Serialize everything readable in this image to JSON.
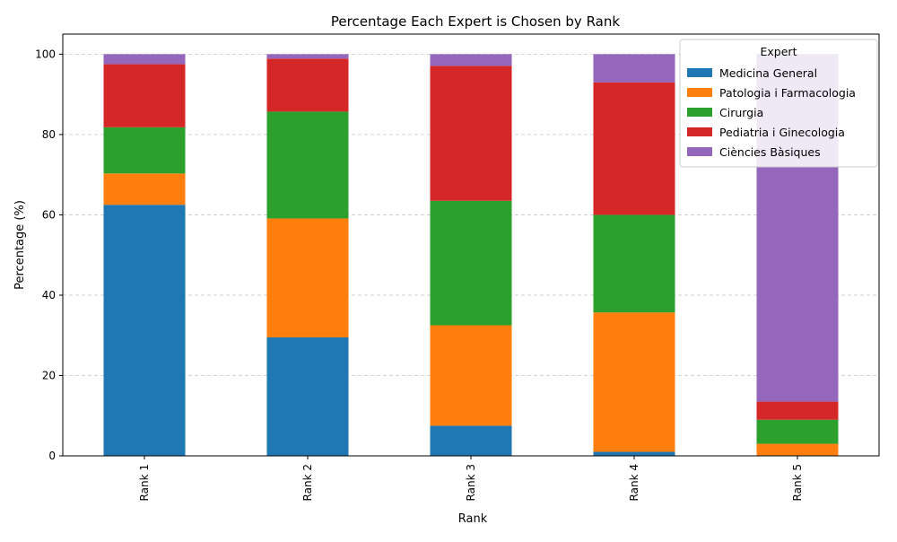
{
  "chart_data": {
    "type": "bar",
    "stacked": true,
    "title": "Percentage Each Expert is Chosen by Rank",
    "xlabel": "Rank",
    "ylabel": "Percentage (%)",
    "ylim": [
      0,
      105
    ],
    "yticks": [
      0,
      20,
      40,
      60,
      80,
      100
    ],
    "grid": "y-dashed",
    "legend_title": "Expert",
    "legend_position": "top-right",
    "categories": [
      "Rank 1",
      "Rank 2",
      "Rank 3",
      "Rank 4",
      "Rank 5"
    ],
    "series": [
      {
        "name": "Medicina General",
        "color": "#1f77b4",
        "values": [
          62.5,
          29.5,
          7.5,
          1.0,
          0.0
        ]
      },
      {
        "name": "Patologia i Farmacologia",
        "color": "#ff7f0e",
        "values": [
          7.8,
          29.6,
          25.0,
          34.7,
          3.0
        ]
      },
      {
        "name": "Cirurgia",
        "color": "#2ca02c",
        "values": [
          11.5,
          26.6,
          31.0,
          24.3,
          6.0
        ]
      },
      {
        "name": "Pediatria i Ginecologia",
        "color": "#d62728",
        "values": [
          15.7,
          13.2,
          33.6,
          33.0,
          4.5
        ]
      },
      {
        "name": "Ciències Bàsiques",
        "color": "#9467bd",
        "values": [
          2.5,
          1.1,
          2.9,
          7.0,
          86.5
        ]
      }
    ]
  }
}
